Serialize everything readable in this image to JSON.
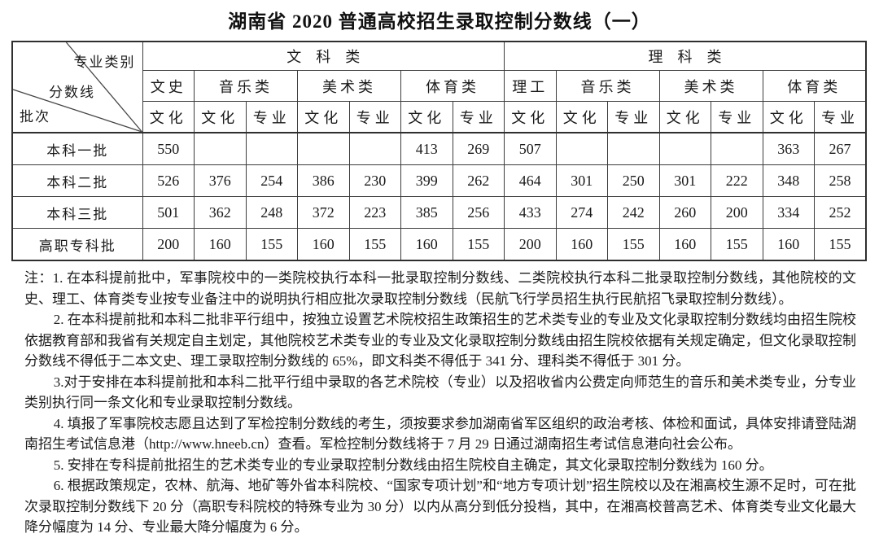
{
  "title": "湖南省 2020 普通高校招生录取控制分数线（一）",
  "table": {
    "corner": {
      "top": "专业类别",
      "middle": "分数线",
      "bottom": "批次"
    },
    "groups": [
      {
        "label": "文　科　类",
        "subgroups": [
          {
            "label": "文史"
          },
          {
            "label": "音乐类"
          },
          {
            "label": "美术类"
          },
          {
            "label": "体育类"
          }
        ]
      },
      {
        "label": "理　科　类",
        "subgroups": [
          {
            "label": "理工"
          },
          {
            "label": "音乐类"
          },
          {
            "label": "美术类"
          },
          {
            "label": "体育类"
          }
        ]
      }
    ],
    "col_headers": [
      "文化",
      "文化",
      "专业",
      "文化",
      "专业",
      "文化",
      "专业",
      "文化",
      "文化",
      "专业",
      "文化",
      "专业",
      "文化",
      "专业"
    ],
    "rows": [
      {
        "label": "本科一批",
        "values": [
          "550",
          "",
          "",
          "",
          "",
          "413",
          "269",
          "507",
          "",
          "",
          "",
          "",
          "363",
          "267"
        ]
      },
      {
        "label": "本科二批",
        "values": [
          "526",
          "376",
          "254",
          "386",
          "230",
          "399",
          "262",
          "464",
          "301",
          "250",
          "301",
          "222",
          "348",
          "258"
        ]
      },
      {
        "label": "本科三批",
        "values": [
          "501",
          "362",
          "248",
          "372",
          "223",
          "385",
          "256",
          "433",
          "274",
          "242",
          "260",
          "200",
          "334",
          "252"
        ]
      },
      {
        "label": "高职专科批",
        "values": [
          "200",
          "160",
          "155",
          "160",
          "155",
          "160",
          "155",
          "200",
          "160",
          "155",
          "160",
          "155",
          "160",
          "155"
        ]
      }
    ]
  },
  "notes": [
    "注：1. 在本科提前批中，军事院校中的一类院校执行本科一批录取控制分数线、二类院校执行本科二批录取控制分数线，其他院校的文史、理工、体育类专业按专业备注中的说明执行相应批次录取控制分数线（民航飞行学员招生执行民航招飞录取控制分数线）。",
    "2. 在本科提前批和本科二批非平行组中，按独立设置艺术院校招生政策招生的艺术类专业的专业及文化录取控制分数线均由招生院校依据教育部和我省有关规定自主划定，其他院校艺术类专业的专业及文化录取控制分数线由招生院校依据有关规定确定，但文化录取控制分数线不得低于二本文史、理工录取控制分数线的 65%，即文科类不得低于 341 分、理科类不得低于 301 分。",
    "3.对于安排在本科提前批和本科二批平行组中录取的各艺术院校（专业）以及招收省内公费定向师范生的音乐和美术类专业，分专业类别执行同一条文化和专业录取控制分数线。",
    "4. 填报了军事院校志愿且达到了军检控制分数线的考生，须按要求参加湖南省军区组织的政治考核、体检和面试，具体安排请登陆湖南招生考试信息港（http://www.hneeb.cn）查看。军检控制分数线将于 7 月 29 日通过湖南招生考试信息港向社会公布。",
    "5. 安排在专科提前批招生的艺术类专业的专业录取控制分数线由招生院校自主确定，其文化录取控制分数线为 160 分。",
    "6. 根据政策规定，农林、航海、地矿等外省本科院校、“国家专项计划”和“地方专项计划”招生院校以及在湘高校生源不足时，可在批次录取控制分数线下 20 分（高职专科院校的特殊专业为 30 分）以内从高分到低分投档，其中，在湘高校普高艺术、体育类专业文化最大降分幅度为 14 分、专业最大降分幅度为 6 分。"
  ]
}
